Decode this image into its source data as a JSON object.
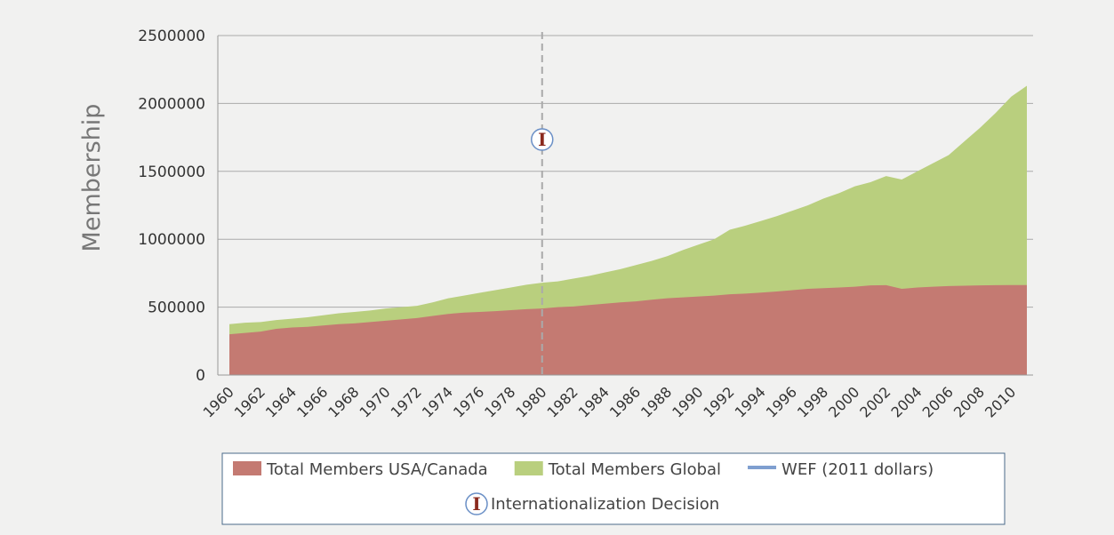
{
  "chart_data": {
    "type": "area",
    "y_label": "Membership",
    "categories": [
      1960,
      null,
      1962,
      null,
      1964,
      null,
      1966,
      null,
      1968,
      null,
      1970,
      null,
      1972,
      null,
      1974,
      null,
      1976,
      null,
      1978,
      null,
      1980,
      null,
      1982,
      null,
      1984,
      null,
      1986,
      null,
      1988,
      null,
      1990,
      null,
      1992,
      null,
      1994,
      null,
      1996,
      null,
      1998,
      null,
      2000,
      null,
      2002,
      null,
      2004,
      null,
      2006,
      null,
      2008,
      null,
      2010,
      null
    ],
    "series": [
      {
        "name": "Total Members Global",
        "color": "#b9cf7e",
        "kind": "area",
        "values": [
          375000,
          385000,
          390000,
          405000,
          415000,
          425000,
          440000,
          455000,
          465000,
          475000,
          490000,
          500000,
          510000,
          535000,
          565000,
          585000,
          605000,
          625000,
          645000,
          665000,
          680000,
          690000,
          710000,
          730000,
          755000,
          780000,
          810000,
          840000,
          875000,
          920000,
          960000,
          1000000,
          1070000,
          1100000,
          1135000,
          1170000,
          1210000,
          1250000,
          1300000,
          1340000,
          1390000,
          1420000,
          1465000,
          1440000,
          1500000,
          1560000,
          1620000,
          1720000,
          1820000,
          1930000,
          2050000,
          2130000
        ]
      },
      {
        "name": "Total Members USA/Canada",
        "color": "#c47a72",
        "kind": "area",
        "values": [
          300000,
          310000,
          320000,
          340000,
          350000,
          355000,
          365000,
          375000,
          380000,
          390000,
          400000,
          410000,
          420000,
          435000,
          450000,
          460000,
          465000,
          470000,
          478000,
          485000,
          490000,
          500000,
          505000,
          515000,
          525000,
          535000,
          542000,
          555000,
          565000,
          572000,
          578000,
          585000,
          595000,
          600000,
          607000,
          615000,
          625000,
          635000,
          640000,
          645000,
          650000,
          660000,
          662000,
          635000,
          645000,
          650000,
          655000,
          658000,
          660000,
          662000,
          663000,
          663000
        ]
      },
      {
        "name": "WEF (2011 dollars)",
        "color": "#7f9fd0",
        "kind": "line",
        "values": [
          null,
          null,
          null,
          null,
          null,
          null,
          null,
          null,
          null,
          null,
          null,
          null,
          null,
          null,
          null,
          null,
          null,
          null,
          null,
          null,
          null,
          null,
          null,
          null,
          null,
          null,
          null,
          null,
          null,
          null,
          null,
          null,
          null,
          null,
          null,
          null,
          null,
          null,
          null,
          null,
          null,
          null,
          null,
          null,
          null,
          null,
          null,
          null,
          null,
          null,
          null,
          null
        ]
      }
    ],
    "legend_order": [
      1,
      0,
      2
    ],
    "annotation": {
      "x": 1980,
      "marker": "I",
      "label": "Internationalization Decision"
    },
    "ylim": [
      0,
      2500000
    ],
    "yticks": [
      0,
      500000,
      1000000,
      1500000,
      2000000,
      2500000
    ],
    "grid": true
  }
}
